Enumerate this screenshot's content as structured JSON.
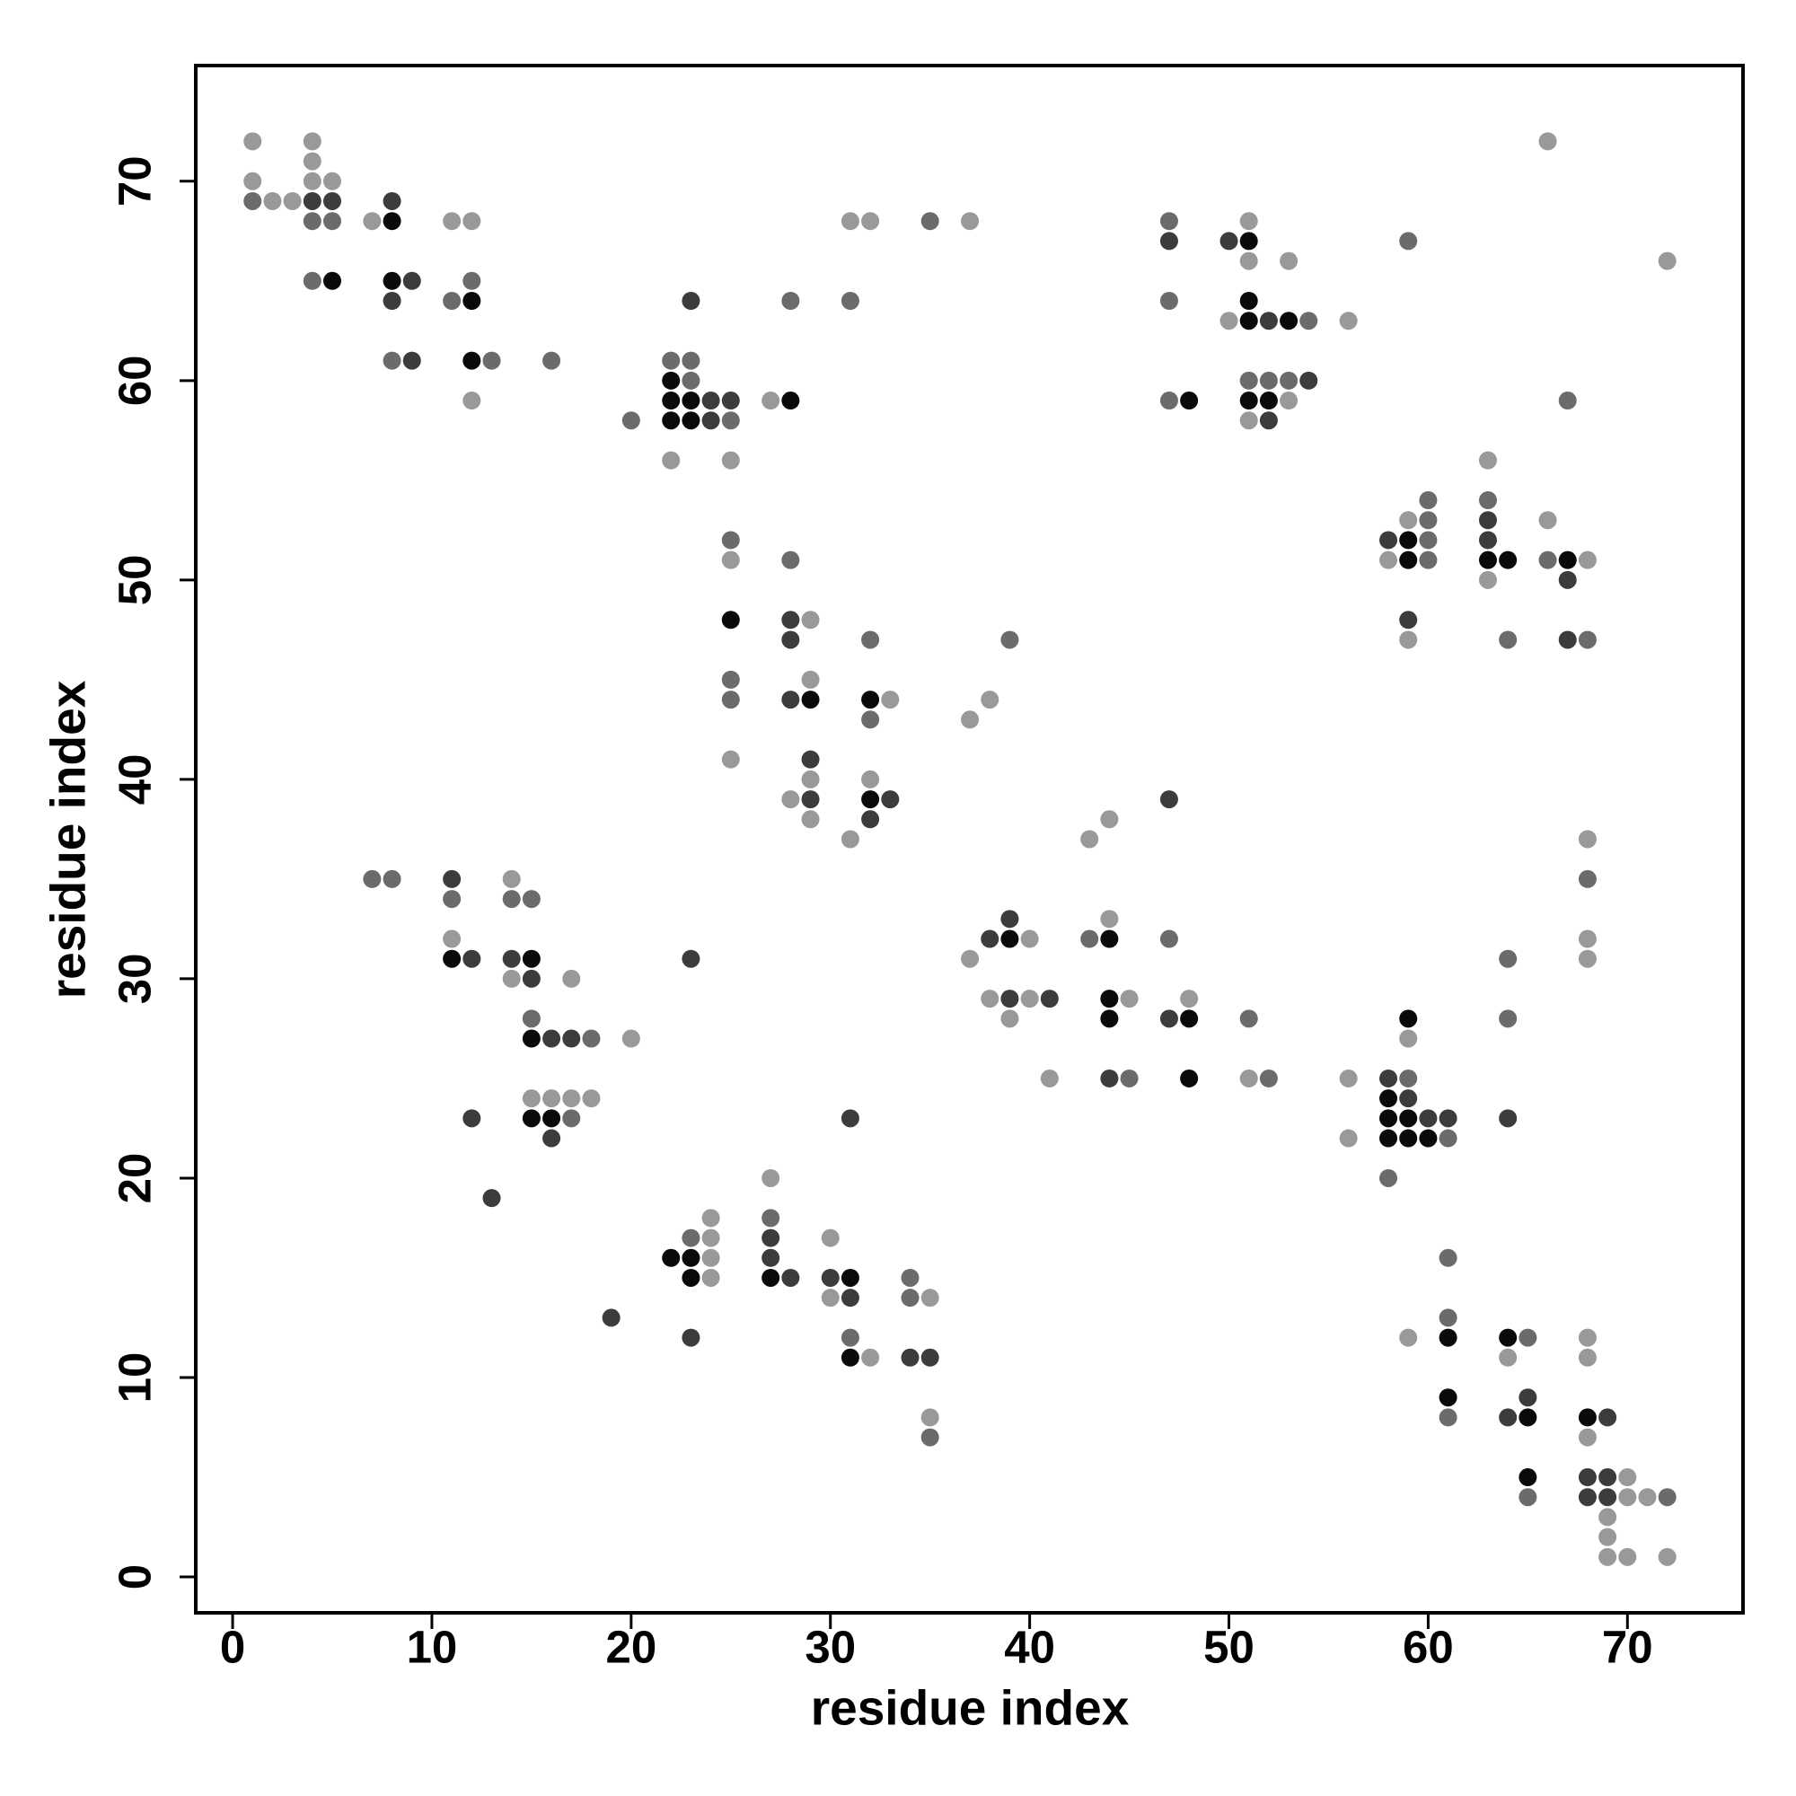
{
  "chart_data": {
    "type": "scatter",
    "xlabel": "residue index",
    "ylabel": "residue index",
    "xlim": [
      -1.85,
      75.8
    ],
    "ylim": [
      -1.8,
      75.8
    ],
    "xticks": [
      0,
      10,
      20,
      30,
      40,
      50,
      60,
      70
    ],
    "yticks": [
      0,
      10,
      20,
      30,
      40,
      50,
      60,
      70
    ],
    "series": [
      {
        "color": "#999999",
        "x": [
          1,
          4,
          66,
          4,
          1,
          4,
          5,
          2,
          3,
          7,
          11,
          12,
          31,
          32,
          37,
          51,
          51,
          53,
          72,
          50,
          56,
          12,
          27,
          53,
          51,
          22,
          25,
          63,
          59,
          66,
          25,
          58,
          68,
          63,
          29,
          59,
          29,
          33,
          38,
          37,
          25,
          29,
          32,
          28,
          29,
          44,
          31,
          43,
          68,
          14,
          44,
          11,
          40,
          68,
          37,
          68,
          14,
          17,
          38,
          40,
          45,
          48,
          39,
          20,
          59,
          41,
          51,
          56,
          15,
          16,
          17,
          18,
          56,
          27,
          24,
          24,
          30,
          24,
          24,
          30,
          35,
          59,
          68,
          32,
          64,
          68,
          35,
          68,
          70,
          70,
          71,
          69,
          69,
          69,
          70,
          72
        ],
        "values": [
          72,
          72,
          72,
          71,
          70,
          70,
          70,
          69,
          69,
          68,
          68,
          68,
          68,
          68,
          68,
          68,
          66,
          66,
          66,
          63,
          63,
          59,
          59,
          59,
          58,
          56,
          56,
          56,
          53,
          53,
          51,
          51,
          51,
          50,
          48,
          47,
          45,
          44,
          44,
          43,
          41,
          40,
          40,
          39,
          38,
          38,
          37,
          37,
          37,
          35,
          33,
          32,
          32,
          32,
          31,
          31,
          30,
          30,
          29,
          29,
          29,
          29,
          28,
          27,
          27,
          25,
          25,
          25,
          24,
          24,
          24,
          24,
          22,
          20,
          18,
          17,
          17,
          16,
          15,
          14,
          14,
          12,
          12,
          11,
          11,
          11,
          8,
          7,
          5,
          4,
          4,
          3,
          2,
          1,
          1,
          1
        ]
      },
      {
        "color": "#6b6b6b",
        "x": [
          1,
          4,
          5,
          35,
          47,
          59,
          4,
          12,
          11,
          28,
          31,
          47,
          54,
          8,
          13,
          16,
          22,
          23,
          23,
          51,
          52,
          53,
          47,
          67,
          20,
          25,
          60,
          63,
          60,
          25,
          60,
          28,
          60,
          66,
          32,
          39,
          64,
          68,
          25,
          25,
          32,
          7,
          8,
          68,
          11,
          14,
          15,
          43,
          47,
          64,
          15,
          51,
          64,
          18,
          45,
          52,
          59,
          17,
          61,
          58,
          27,
          23,
          61,
          34,
          34,
          61,
          31,
          65,
          61,
          35,
          65,
          72
        ],
        "values": [
          69,
          68,
          68,
          68,
          68,
          67,
          65,
          65,
          64,
          64,
          64,
          64,
          63,
          61,
          61,
          61,
          61,
          61,
          60,
          60,
          60,
          60,
          59,
          59,
          58,
          58,
          54,
          54,
          53,
          52,
          52,
          51,
          51,
          51,
          47,
          47,
          47,
          47,
          45,
          44,
          43,
          35,
          35,
          35,
          34,
          34,
          34,
          32,
          32,
          31,
          28,
          28,
          28,
          27,
          25,
          25,
          25,
          23,
          22,
          20,
          18,
          17,
          16,
          15,
          14,
          13,
          12,
          12,
          8,
          7,
          4,
          4
        ]
      },
      {
        "color": "#3c3c3c",
        "x": [
          4,
          5,
          8,
          47,
          50,
          9,
          8,
          23,
          52,
          9,
          54,
          24,
          25,
          24,
          52,
          63,
          58,
          63,
          67,
          28,
          59,
          28,
          67,
          28,
          29,
          29,
          33,
          47,
          32,
          11,
          39,
          38,
          12,
          14,
          23,
          15,
          39,
          41,
          47,
          16,
          17,
          44,
          58,
          59,
          12,
          31,
          60,
          61,
          64,
          16,
          13,
          27,
          27,
          28,
          30,
          31,
          19,
          23,
          34,
          35,
          65,
          64,
          69,
          68,
          69,
          68,
          69
        ],
        "values": [
          69,
          69,
          69,
          67,
          67,
          65,
          64,
          64,
          63,
          61,
          60,
          59,
          59,
          58,
          58,
          53,
          52,
          52,
          50,
          48,
          48,
          47,
          47,
          44,
          41,
          39,
          39,
          39,
          38,
          35,
          33,
          32,
          31,
          31,
          31,
          30,
          29,
          29,
          28,
          27,
          27,
          25,
          25,
          24,
          23,
          23,
          23,
          23,
          23,
          22,
          19,
          17,
          16,
          15,
          15,
          14,
          13,
          12,
          11,
          11,
          9,
          8,
          8,
          5,
          5,
          4,
          4
        ]
      },
      {
        "color": "#0a0a0a",
        "x": [
          8,
          51,
          5,
          8,
          12,
          51,
          51,
          53,
          12,
          22,
          22,
          23,
          28,
          48,
          51,
          52,
          22,
          23,
          59,
          59,
          63,
          64,
          67,
          25,
          29,
          32,
          32,
          39,
          44,
          11,
          15,
          44,
          44,
          48,
          59,
          15,
          48,
          58,
          15,
          16,
          58,
          59,
          58,
          59,
          60,
          22,
          23,
          23,
          27,
          31,
          61,
          64,
          31,
          61,
          65,
          68,
          65
        ],
        "values": [
          68,
          67,
          65,
          65,
          64,
          64,
          63,
          63,
          61,
          60,
          59,
          59,
          59,
          59,
          59,
          59,
          58,
          58,
          52,
          51,
          51,
          51,
          51,
          48,
          44,
          44,
          39,
          32,
          32,
          31,
          31,
          29,
          28,
          28,
          28,
          27,
          25,
          24,
          23,
          23,
          23,
          23,
          22,
          22,
          22,
          16,
          16,
          15,
          15,
          15,
          12,
          12,
          11,
          9,
          8,
          8,
          5
        ]
      }
    ]
  }
}
